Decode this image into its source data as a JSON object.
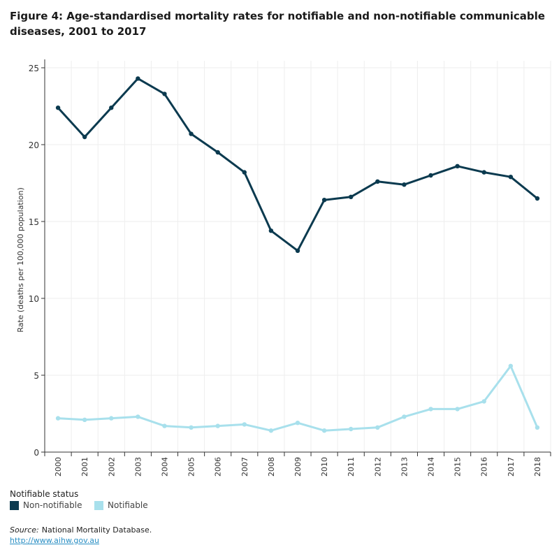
{
  "chart_data": {
    "type": "line",
    "title": "Figure 4: Age-standardised mortality rates for notifiable and non-notifiable communicable diseases, 2001 to 2017",
    "xlabel": "",
    "ylabel": "Rate (deaths per 100,000 population)",
    "x": [
      "2000",
      "2001",
      "2002",
      "2003",
      "2004",
      "2005",
      "2006",
      "2007",
      "2008",
      "2009",
      "2010",
      "2011",
      "2012",
      "2013",
      "2014",
      "2015",
      "2016",
      "2017",
      "2018"
    ],
    "ylim": [
      0,
      25
    ],
    "yticks": [
      0,
      5,
      10,
      15,
      20,
      25
    ],
    "grid": true,
    "legend_title": "Notifiable status",
    "legend_position": "bottom-left",
    "series": [
      {
        "name": "Non-notifiable",
        "color": "#0b3a4f",
        "values": [
          22.4,
          20.5,
          22.4,
          24.3,
          23.3,
          20.7,
          19.5,
          18.2,
          14.4,
          13.1,
          16.4,
          16.6,
          17.6,
          17.4,
          18.0,
          18.6,
          18.2,
          17.9,
          16.5
        ]
      },
      {
        "name": "Notifiable",
        "color": "#a8e0ec",
        "values": [
          2.2,
          2.1,
          2.2,
          2.3,
          1.7,
          1.6,
          1.7,
          1.8,
          1.4,
          1.9,
          1.4,
          1.5,
          1.6,
          2.3,
          2.8,
          2.8,
          3.3,
          5.6,
          1.6
        ]
      }
    ]
  },
  "footer": {
    "source_label": "Source:",
    "source_text": "National Mortality Database.",
    "link": "http://www.aihw.gov.au"
  }
}
